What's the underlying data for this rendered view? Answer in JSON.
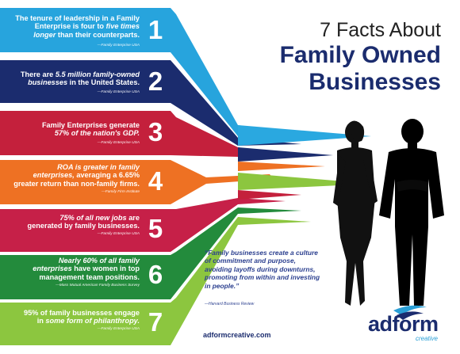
{
  "title": {
    "line1": "7 Facts About",
    "line2": "Family Owned",
    "line3": "Businesses"
  },
  "colors": {
    "navy": "#1b2c6e",
    "cyan": "#2a9fd6",
    "fact_colors": [
      "#27a4dd",
      "#1b2c6e",
      "#c4203c",
      "#ee7123",
      "#c62048",
      "#238b3c",
      "#8cc63f"
    ]
  },
  "facts": [
    {
      "number": "1",
      "text_a": "The tenure of leadership in a Family",
      "text_b": "Enterprise is four to ",
      "text_em": "five times",
      "text_c": "longer",
      "text_d": " than their counterparts.",
      "source": "—Family Enterprise USA"
    },
    {
      "number": "2",
      "text_a": "There are ",
      "text_em": "5.5 million family-owned",
      "text_b": "businesses",
      "text_c": " in the United States.",
      "source": "—Family Enterprise USA"
    },
    {
      "number": "3",
      "text_a": "Family Enterprises generate",
      "text_em": "57% of the nation's GDP.",
      "source": "—Family Enterprise USA"
    },
    {
      "number": "4",
      "text_em": "ROA is greater in family",
      "text_em2": "enterprises,",
      "text_b": " averaging a 6.65%",
      "text_c": "greater return than non-family firms.",
      "source": "—Family Firm Institute"
    },
    {
      "number": "5",
      "text_em": "75% of all new jobs",
      "text_b": " are",
      "text_c": "generated by family businesses.",
      "source": "—Family Enterprise USA"
    },
    {
      "number": "6",
      "text_em": "Nearly 60% of all family",
      "text_em2": "enterprises",
      "text_b": " have women in top",
      "text_c": "management team positions.",
      "source": "—Mass Mutual American Family Business Survey"
    },
    {
      "number": "7",
      "text_a": "95% of family businesses engage",
      "text_b": "in ",
      "text_em": "some form of philanthropy.",
      "source": "—Family Enterprise USA"
    }
  ],
  "quote": {
    "text": "“Family businesses create a culture of commitment and purpose, avoiding layoffs during downturns, promoting from within and investing in people.”",
    "source": "—Harvard Business Review"
  },
  "website": "adformcreative.com",
  "brand": {
    "name": "adform",
    "sub": "creative"
  }
}
